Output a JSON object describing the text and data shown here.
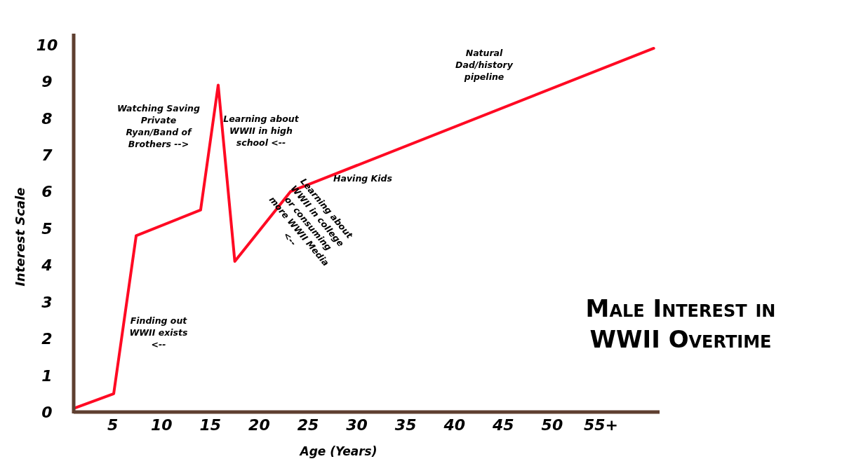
{
  "chart_data": {
    "type": "line",
    "title": "Male Interest in WWII Overtime",
    "xlabel": "Age (Years)",
    "ylabel": "Interest Scale",
    "x": [
      1,
      5.1,
      7.4,
      14,
      15.8,
      17.5,
      23.2,
      60.4
    ],
    "series": [
      {
        "color": "#ff0a23",
        "values": [
          0.1,
          0.5,
          4.8,
          5.5,
          8.9,
          4.1,
          6,
          9.9
        ]
      }
    ],
    "xlim": [
      1,
      61
    ],
    "xticks": [
      5,
      10,
      15,
      20,
      25,
      30,
      35,
      40,
      45,
      50,
      {
        "value": 55,
        "label": "55+"
      }
    ],
    "ylim": [
      0,
      10.3
    ],
    "yticks": [
      0,
      1,
      2,
      3,
      4,
      5,
      6,
      7,
      8,
      9,
      10
    ],
    "grid": false,
    "marker": "none",
    "line_style": "solid",
    "annotations": [
      "Finding out WWII exists <--",
      "Watching Saving Private Ryan/Band of Brothers -->",
      "Learning about WWII in high school <--",
      "Learning about WWII in college or consuming more WWII Media <--",
      "Having Kids",
      "Natural Dad/history pipeline"
    ]
  }
}
